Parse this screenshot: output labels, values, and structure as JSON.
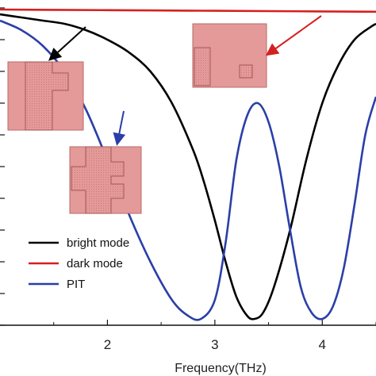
{
  "chart_data": {
    "type": "line",
    "xlabel": "Frequency(THz)",
    "ylabel": "",
    "xlim": [
      1.0,
      4.5
    ],
    "ylim": [
      0.0,
      1.0
    ],
    "x_ticks": [
      2,
      3,
      4
    ],
    "x_tick_labels": [
      "2",
      "3",
      "4"
    ],
    "y_tick_count": 10,
    "grid": false,
    "legend_position": "bottom-left",
    "series": [
      {
        "name": "bright mode",
        "color": "#000000",
        "x": [
          1.0,
          1.2,
          1.4,
          1.6,
          1.8,
          2.0,
          2.2,
          2.4,
          2.6,
          2.8,
          2.9,
          3.0,
          3.1,
          3.2,
          3.3,
          3.37,
          3.45,
          3.55,
          3.7,
          3.85,
          4.0,
          4.15,
          4.3,
          4.45,
          4.5
        ],
        "y": [
          0.98,
          0.97,
          0.96,
          0.95,
          0.93,
          0.9,
          0.86,
          0.8,
          0.7,
          0.55,
          0.45,
          0.33,
          0.2,
          0.09,
          0.03,
          0.02,
          0.04,
          0.12,
          0.3,
          0.52,
          0.7,
          0.82,
          0.9,
          0.94,
          0.95
        ]
      },
      {
        "name": "dark mode",
        "color": "#d62020",
        "x": [
          1.0,
          1.5,
          2.0,
          2.5,
          3.0,
          3.5,
          4.0,
          4.5
        ],
        "y": [
          0.995,
          0.994,
          0.993,
          0.992,
          0.991,
          0.99,
          0.989,
          0.988
        ]
      },
      {
        "name": "PIT",
        "color": "#2a3fa8",
        "x": [
          1.0,
          1.2,
          1.4,
          1.6,
          1.8,
          2.0,
          2.2,
          2.4,
          2.6,
          2.75,
          2.87,
          3.0,
          3.1,
          3.2,
          3.3,
          3.4,
          3.5,
          3.6,
          3.7,
          3.8,
          3.9,
          4.0,
          4.1,
          4.2,
          4.3,
          4.4,
          4.5
        ],
        "y": [
          0.96,
          0.93,
          0.88,
          0.8,
          0.68,
          0.52,
          0.35,
          0.2,
          0.08,
          0.03,
          0.02,
          0.08,
          0.26,
          0.52,
          0.66,
          0.7,
          0.64,
          0.5,
          0.3,
          0.12,
          0.04,
          0.02,
          0.06,
          0.18,
          0.38,
          0.6,
          0.72
        ]
      }
    ]
  },
  "legend": {
    "entries": [
      "bright mode",
      "dark mode",
      "PIT"
    ]
  },
  "insets": [
    {
      "name": "bright-mode-structure",
      "fill": "#e59a9a",
      "border": "#b86a6a"
    },
    {
      "name": "dark-mode-structure",
      "fill": "#e59a9a",
      "border": "#b86a6a"
    },
    {
      "name": "pit-structure",
      "fill": "#e59a9a",
      "border": "#b86a6a"
    }
  ],
  "arrows": [
    {
      "target": "bright-mode-structure",
      "color": "#000000"
    },
    {
      "target": "dark-mode-structure",
      "color": "#d62020"
    },
    {
      "target": "pit-structure",
      "color": "#2a3fa8"
    }
  ]
}
